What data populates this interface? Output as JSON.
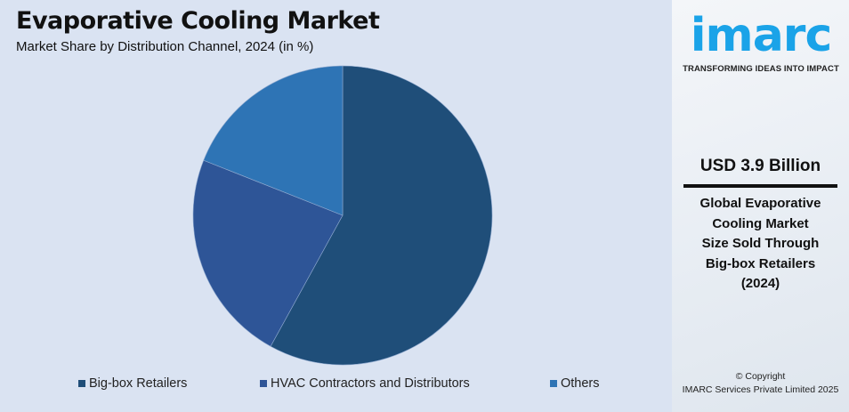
{
  "header": {
    "title": "Evaporative Cooling Market",
    "subtitle": "Market Share by Distribution Channel, 2024 (in %)"
  },
  "legend": [
    {
      "label": "Big-box Retailers",
      "color": "#1f4e79"
    },
    {
      "label": "HVAC Contractors and Distributors",
      "color": "#2e5597"
    },
    {
      "label": "Others",
      "color": "#2e74b5"
    }
  ],
  "sidebar": {
    "logo_text": "imarc",
    "tagline": "TRANSFORMING IDEAS INTO IMPACT",
    "value": "USD 3.9 Billion",
    "desc_line1": "Global Evaporative",
    "desc_line2": "Cooling Market",
    "desc_line3": "Size Sold Through",
    "desc_line4": "Big-box Retailers",
    "desc_line5": "(2024)",
    "copyright_line1": "© Copyright",
    "copyright_line2": "IMARC Services Private Limited 2025",
    "brand_color": "#1aa3e8"
  },
  "chart_data": {
    "type": "pie",
    "title": "Evaporative Cooling Market",
    "subtitle": "Market Share by Distribution Channel, 2024 (in %)",
    "categories": [
      "Big-box Retailers",
      "HVAC Contractors and Distributors",
      "Others"
    ],
    "values": [
      58,
      23,
      19
    ],
    "colors": [
      "#1f4e79",
      "#2e5597",
      "#2e74b5"
    ],
    "start_angle": "12 o'clock, clockwise",
    "legend_position": "bottom"
  }
}
